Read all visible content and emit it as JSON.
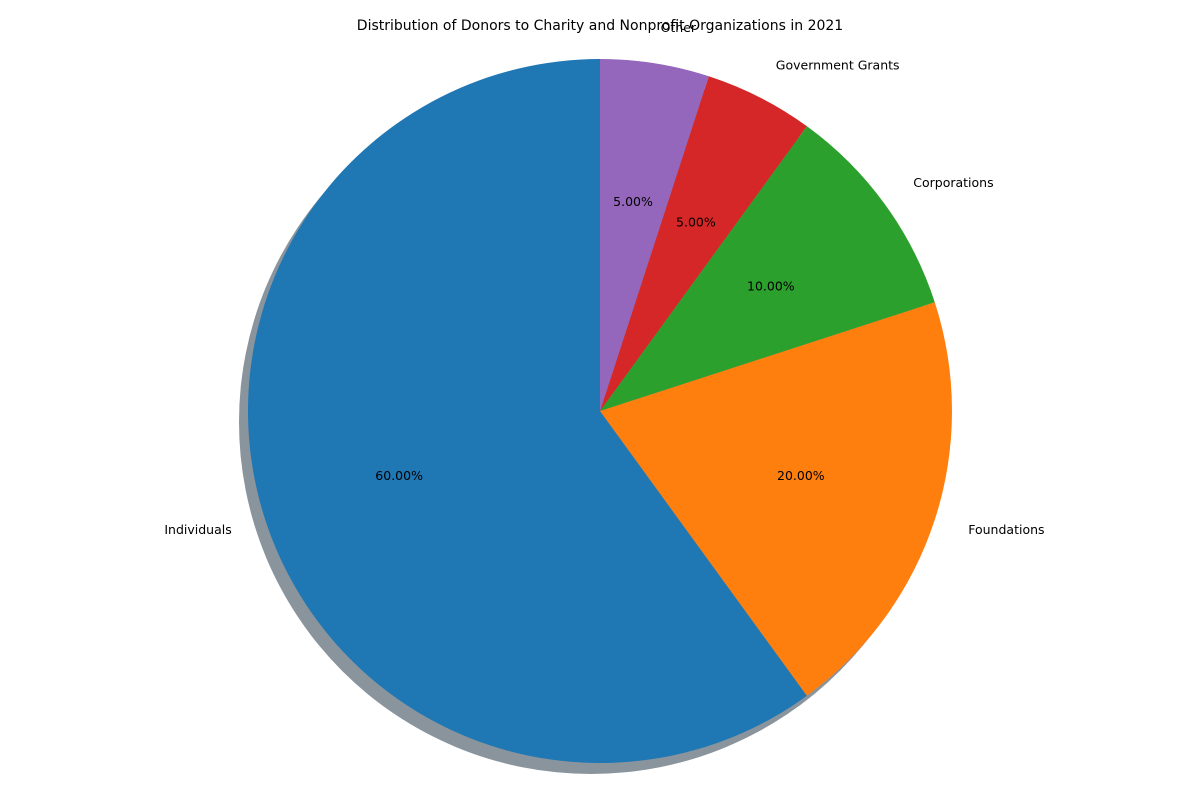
{
  "chart_data": {
    "type": "pie",
    "title": "Distribution of Donors to Charity and Nonprofit Organizations in 2021",
    "categories": [
      "Individuals",
      "Foundations",
      "Corporations",
      "Government Grants",
      "Other"
    ],
    "values": [
      60,
      20,
      10,
      5,
      5
    ],
    "percent_labels": [
      "60.00%",
      "20.00%",
      "10.00%",
      "5.00%",
      "5.00%"
    ],
    "colors": [
      "#1f77b4",
      "#ff7f0e",
      "#2ca02c",
      "#d62728",
      "#9467bd"
    ],
    "start_angle_deg": 90,
    "direction": "counterclockwise",
    "shadow": true,
    "legend": "none"
  }
}
